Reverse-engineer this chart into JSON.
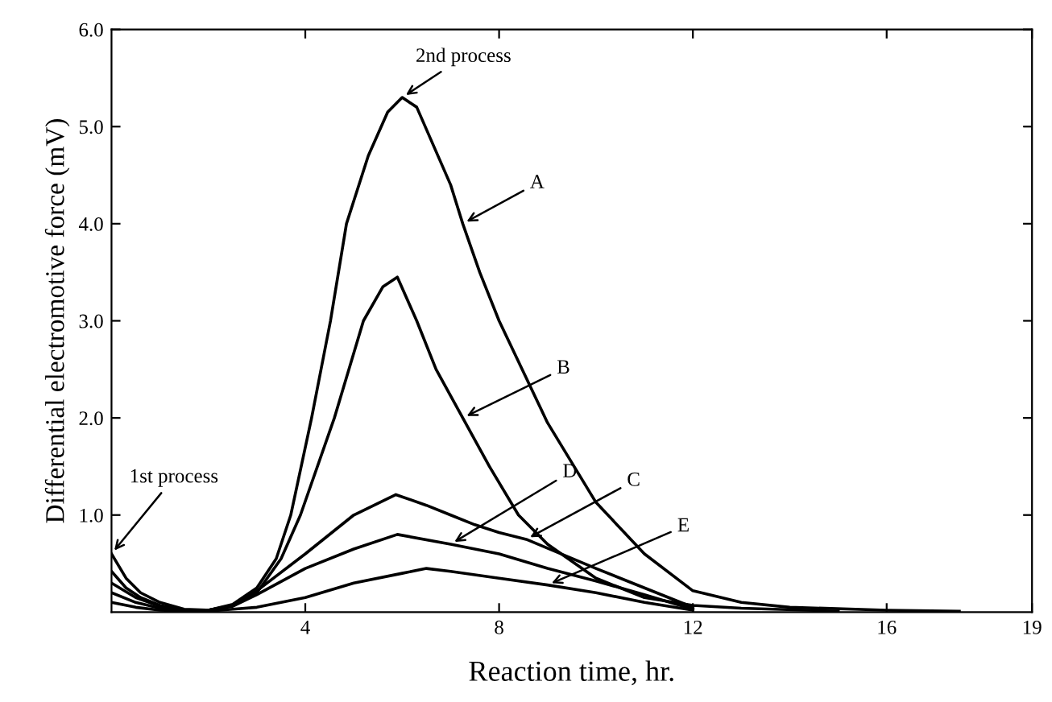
{
  "chart_data": {
    "type": "line",
    "xlabel": "Reaction time, hr.",
    "ylabel": "Differential electromotive force (mV)",
    "xlim": [
      0,
      19
    ],
    "xticks": [
      4,
      8,
      12,
      16,
      19
    ],
    "ylim": [
      0,
      6
    ],
    "yticks": [
      {
        "value": 1,
        "label": "1.0"
      },
      {
        "value": 2,
        "label": "2.0"
      },
      {
        "value": 3,
        "label": "3.0"
      },
      {
        "value": 4,
        "label": "4.0"
      },
      {
        "value": 5,
        "label": "5.0"
      },
      {
        "value": 6,
        "label": "6.0"
      }
    ],
    "grid": false,
    "marker": "none",
    "line_style": "solid",
    "series": [
      {
        "color": "#000000",
        "x": [
          0,
          0.3,
          0.6,
          1,
          1.5,
          2,
          2.5,
          3,
          3.4,
          3.7,
          4.13,
          4.52,
          4.85,
          5.3,
          5.7,
          6,
          6.3,
          7,
          7.25,
          7.6,
          8,
          9,
          10,
          11,
          12,
          13,
          14,
          16,
          17.5
        ],
        "values": [
          0.6,
          0.35,
          0.2,
          0.1,
          0.03,
          0.02,
          0.08,
          0.25,
          0.55,
          1.0,
          2.0,
          3.0,
          4.0,
          4.7,
          5.15,
          5.3,
          5.2,
          4.4,
          4.0,
          3.5,
          3.0,
          1.95,
          1.13,
          0.6,
          0.22,
          0.1,
          0.05,
          0.02,
          0.01
        ]
      },
      {
        "color": "#000000",
        "x": [
          0,
          0.3,
          0.6,
          1,
          1.5,
          2,
          2.5,
          3,
          3.5,
          3.9,
          4.6,
          5.2,
          5.6,
          5.9,
          6.3,
          6.7,
          7.25,
          7.8,
          8.4,
          9,
          10,
          11,
          12,
          13,
          15
        ],
        "values": [
          0.42,
          0.25,
          0.15,
          0.07,
          0.02,
          0.02,
          0.07,
          0.2,
          0.55,
          1.0,
          2.0,
          3.0,
          3.35,
          3.45,
          3.0,
          2.5,
          2.0,
          1.5,
          1.0,
          0.7,
          0.35,
          0.15,
          0.07,
          0.04,
          0.01
        ]
      },
      {
        "color": "#000000",
        "x": [
          0,
          0.5,
          1,
          1.5,
          2,
          2.5,
          3,
          4,
          5,
          5.87,
          6.5,
          7,
          7.5,
          8,
          8.56,
          10,
          11,
          12
        ],
        "values": [
          0.3,
          0.15,
          0.06,
          0.02,
          0.02,
          0.07,
          0.22,
          0.6,
          1.0,
          1.21,
          1.1,
          1.0,
          0.9,
          0.82,
          0.75,
          0.45,
          0.25,
          0.05
        ]
      },
      {
        "color": "#000000",
        "x": [
          0,
          0.5,
          1,
          1.5,
          2,
          2.5,
          3,
          4,
          5,
          5.9,
          7,
          8,
          9,
          10,
          11,
          12
        ],
        "values": [
          0.2,
          0.1,
          0.04,
          0.02,
          0.02,
          0.06,
          0.18,
          0.45,
          0.65,
          0.8,
          0.7,
          0.6,
          0.45,
          0.32,
          0.18,
          0.03
        ]
      },
      {
        "color": "#000000",
        "x": [
          0,
          0.5,
          1,
          1.5,
          2,
          2.5,
          3,
          4,
          5,
          6,
          6.5,
          7,
          8,
          9,
          10,
          11,
          12
        ],
        "values": [
          0.1,
          0.05,
          0.02,
          0.01,
          0.01,
          0.03,
          0.05,
          0.15,
          0.3,
          0.4,
          0.45,
          0.42,
          0.35,
          0.28,
          0.2,
          0.1,
          0.02
        ]
      }
    ],
    "annotations": [
      {
        "text": "2nd process",
        "x": 6,
        "y": 5.3
      },
      {
        "text": "1st process",
        "x": 0,
        "y": 0.6
      },
      {
        "text": "A",
        "x": 7.25,
        "y": 4.0
      },
      {
        "text": "B",
        "x": 7.25,
        "y": 2.0
      },
      {
        "text": "D",
        "x": 7,
        "y": 0.7
      },
      {
        "text": "C",
        "x": 8.56,
        "y": 0.75
      },
      {
        "text": "E",
        "x": 9,
        "y": 0.28
      }
    ]
  }
}
